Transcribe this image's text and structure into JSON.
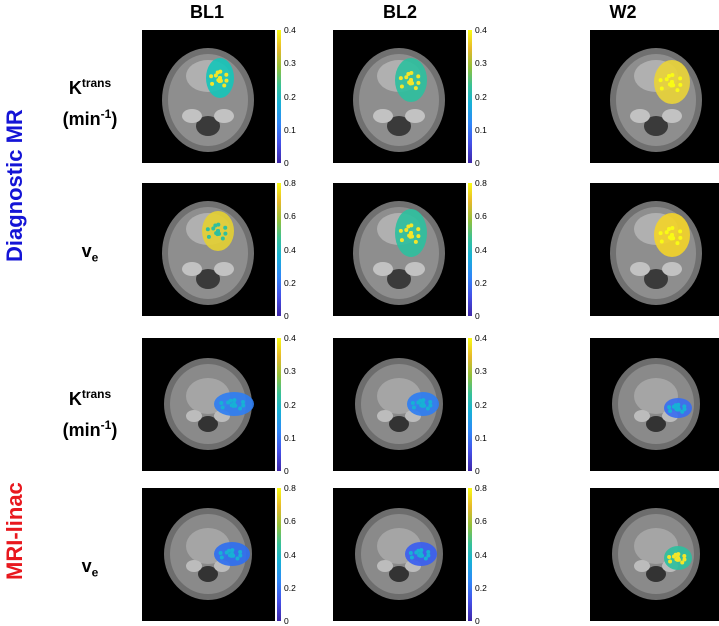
{
  "columns": [
    "BL1",
    "BL2",
    "W2"
  ],
  "groups": [
    {
      "name": "Diagnostic MR",
      "color": "#1414d6",
      "rows": [
        {
          "param_main": "K",
          "param_sup": "trans",
          "unit_main": "(min",
          "unit_sup": "-1",
          "unit_close": ")",
          "cbar_ticks": [
            "0.4",
            "0.3",
            "0.2",
            "0.1",
            "0"
          ],
          "cbar_max": 0.4
        },
        {
          "param_main": "v",
          "param_sub": "e",
          "cbar_ticks": [
            "0.8",
            "0.6",
            "0.4",
            "0.2",
            "0"
          ],
          "cbar_max": 0.8
        }
      ]
    },
    {
      "name": "MRI-linac",
      "color": "#e8181e",
      "rows": [
        {
          "param_main": "K",
          "param_sup": "trans",
          "unit_main": "(min",
          "unit_sup": "-1",
          "unit_close": ")",
          "cbar_ticks": [
            "0.4",
            "0.3",
            "0.2",
            "0.1",
            "0"
          ],
          "cbar_max": 0.4
        },
        {
          "param_main": "v",
          "param_sub": "e",
          "cbar_ticks": [
            "0.8",
            "0.6",
            "0.4",
            "0.2",
            "0"
          ],
          "cbar_max": 0.8
        }
      ]
    }
  ],
  "image_note": "Axial head-and-neck MR images with tumor parameter overlay (parula colormap)",
  "colormap": "parula"
}
